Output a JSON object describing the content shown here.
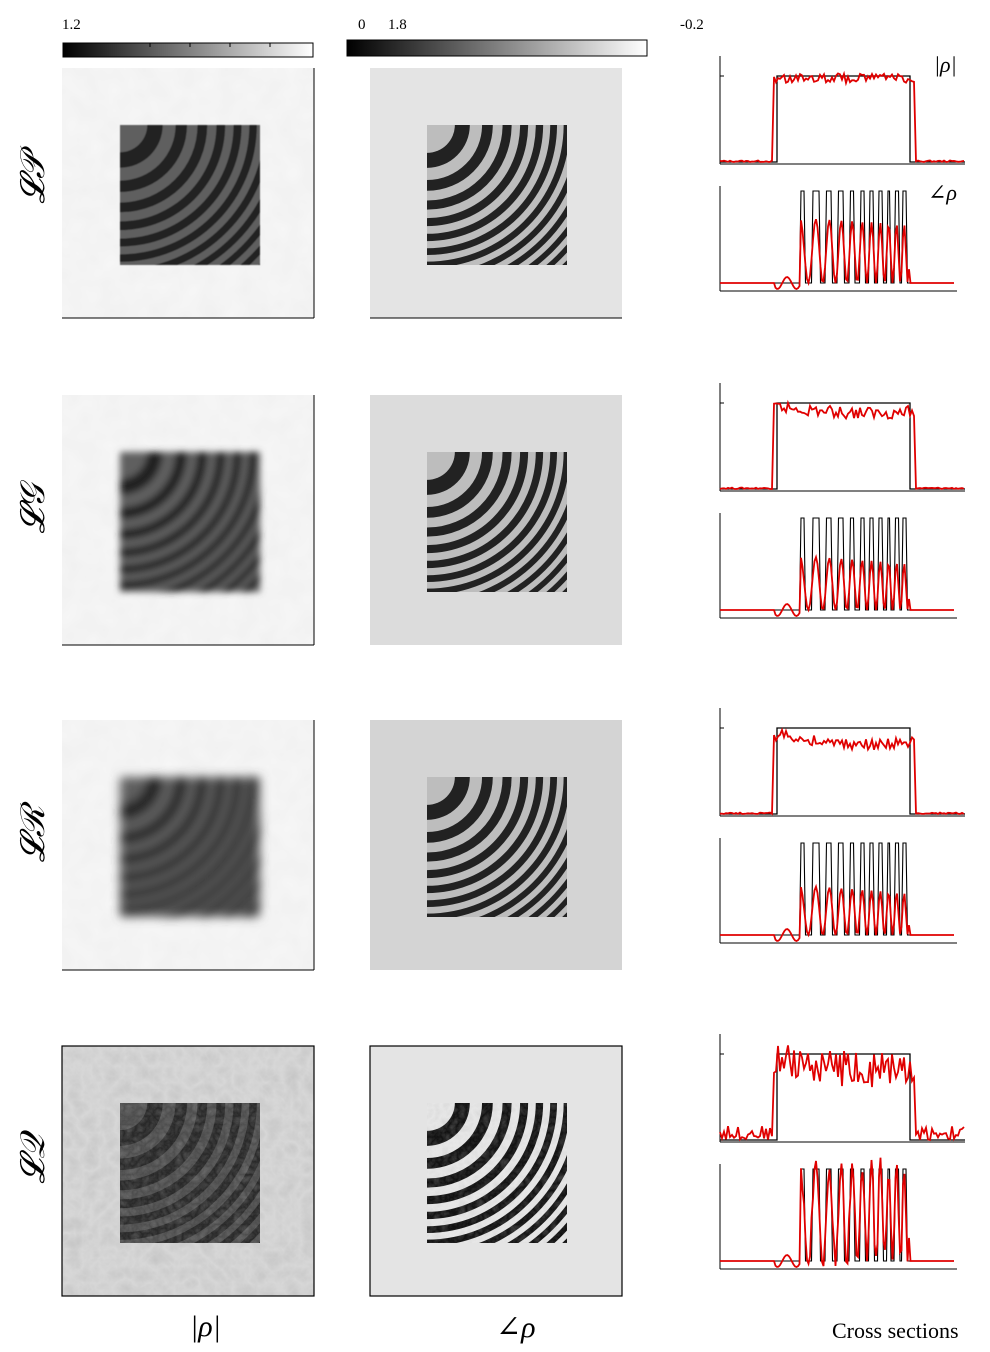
{
  "colorbars": {
    "magnitude_max": "1.2",
    "phase_min": "0",
    "phase_max": "1.8",
    "cross_section_tick": "-0.2"
  },
  "row_labels": [
    "𝓛𝒫",
    "𝓛𝒢",
    "𝓛ℛ",
    "𝓛𝒬"
  ],
  "column_labels": {
    "magnitude": "|ρ|",
    "phase": "∠ρ",
    "cross_sections": "Cross sections"
  },
  "inset_labels": {
    "magnitude": "|ρ|",
    "phase": "∠ρ"
  },
  "colors": {
    "ground_truth": "#000000",
    "reconstruction": "#e00000",
    "background_light": "#e2e2e2"
  },
  "rows": [
    {
      "blur": 0.6,
      "mag_noise": 0.12,
      "phase_bg": "#e4e4e4",
      "amp_frac": 0.72
    },
    {
      "blur": 3.0,
      "mag_noise": 0.1,
      "phase_bg": "#dcdcdc",
      "amp_frac": 0.6
    },
    {
      "blur": 4.5,
      "mag_noise": 0.1,
      "phase_bg": "#d4d4d4",
      "amp_frac": 0.55
    },
    {
      "blur": 0.0,
      "mag_noise": 0.6,
      "phase_bg": "#e4e4e4",
      "amp_frac": 1.0
    }
  ]
}
